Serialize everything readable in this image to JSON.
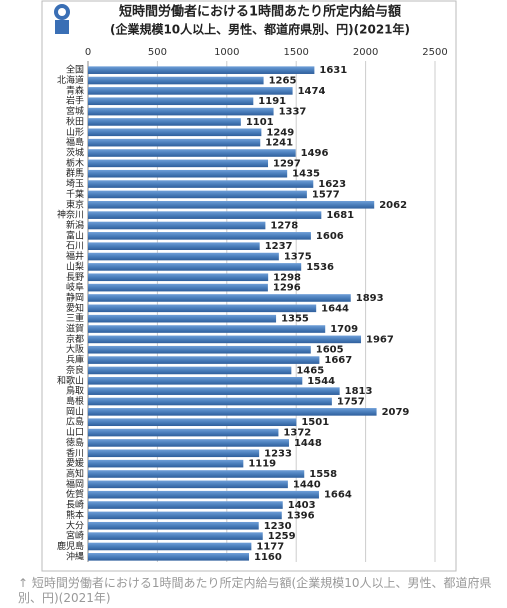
{
  "chart_data": {
    "type": "bar",
    "orientation": "horizontal",
    "title": "短時間労働者における1時間あたり所定内給与額",
    "subtitle": "(企業規模10人以上、男性、都道府県別、円)(2021年)",
    "categories": [
      "全国",
      "北海道",
      "青森",
      "岩手",
      "宮城",
      "秋田",
      "山形",
      "福島",
      "茨城",
      "栃木",
      "群馬",
      "埼玉",
      "千葉",
      "東京",
      "神奈川",
      "新潟",
      "富山",
      "石川",
      "福井",
      "山梨",
      "長野",
      "岐阜",
      "静岡",
      "愛知",
      "三重",
      "滋賀",
      "京都",
      "大阪",
      "兵庫",
      "奈良",
      "和歌山",
      "鳥取",
      "島根",
      "岡山",
      "広島",
      "山口",
      "徳島",
      "香川",
      "愛媛",
      "高知",
      "福岡",
      "佐賀",
      "長崎",
      "熊本",
      "大分",
      "宮崎",
      "鹿児島",
      "沖縄"
    ],
    "values": [
      1631,
      1265,
      1474,
      1191,
      1337,
      1101,
      1249,
      1241,
      1496,
      1297,
      1435,
      1623,
      1577,
      2062,
      1681,
      1278,
      1606,
      1237,
      1375,
      1536,
      1298,
      1296,
      1893,
      1644,
      1355,
      1709,
      1967,
      1605,
      1667,
      1465,
      1544,
      1813,
      1757,
      2079,
      1501,
      1372,
      1448,
      1233,
      1119,
      1558,
      1440,
      1664,
      1403,
      1396,
      1230,
      1259,
      1177,
      1160
    ],
    "color": "#4a7ebb",
    "xlim": [
      0,
      2500
    ],
    "xticks": [
      0,
      500,
      1000,
      1500,
      2000,
      2500
    ],
    "grid": true
  },
  "caption": "↑ 短時間労働者における1時間あたり所定内給与額(企業規模10人以上、男性、都道府県別、円)(2021年)"
}
